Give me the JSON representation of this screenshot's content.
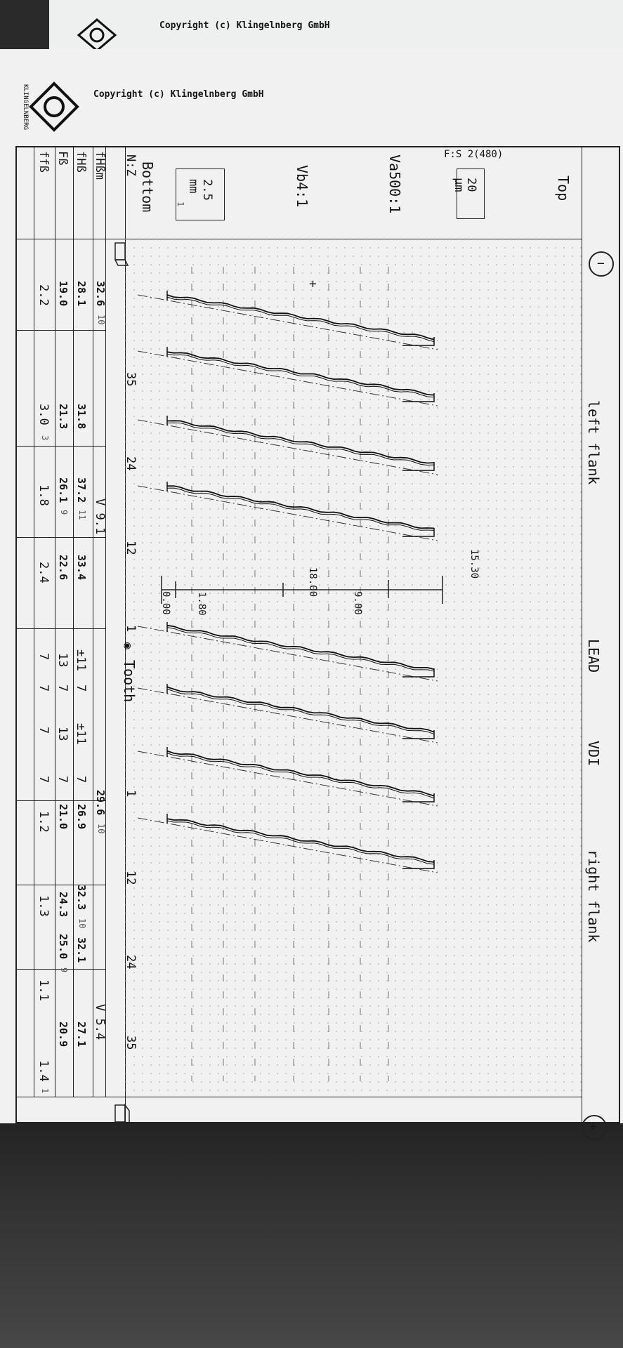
{
  "copyright": "Copyright (c) Klingelnberg GmbH",
  "logo_text": "KLINGELNBERG",
  "header": {
    "position_top": "Top",
    "left_flank": "left flank",
    "lead": "LEAD",
    "vdi": "VDI",
    "right_flank": "right flank",
    "minus": "−",
    "plus": "+"
  },
  "scale": {
    "fs": "F:S 2(480)",
    "vertical_value": "20",
    "vertical_unit": "µm",
    "va": "Va500:1",
    "vb": "Vb4:1",
    "horizontal_value": "2.5",
    "horizontal_unit": "mm",
    "horizontal_sub": "1",
    "bottom": "Bottom"
  },
  "table": {
    "row_labels": [
      "N:Z",
      "fHßm",
      "fHß",
      "Fß",
      "ffß"
    ],
    "tooth_label": "Tooth",
    "left_teeth": [
      "35",
      "24",
      "12",
      "1"
    ],
    "right_teeth": [
      "1",
      "12",
      "24",
      "35"
    ],
    "left_fhbm": "32.6",
    "left_fhbm_q": "10",
    "right_fhbm": "29.6",
    "right_fhbm_q": "10",
    "left_v": "V  9.1",
    "right_v": "V  5.4",
    "tol_fhb": [
      "±11",
      "7",
      "±11",
      "7"
    ],
    "tol_fb": [
      "13",
      "7",
      "13",
      "7"
    ],
    "tol_ffb": [
      "7",
      "7",
      "7",
      "7"
    ],
    "left_cols": [
      {
        "fhb": "28.1",
        "fb": "19.0",
        "ffb": "2.2"
      },
      {
        "fhb": "31.8",
        "fb": "21.3",
        "ffb": "3.0",
        "q": "3"
      },
      {
        "fhb": "37.2",
        "fhb_q": "11",
        "fb": "26.1",
        "fb_q": "9",
        "ffb": "1.8"
      },
      {
        "fhb": "33.4",
        "fb": "22.6",
        "ffb": "2.4"
      }
    ],
    "right_cols": [
      {
        "fhb": "26.9",
        "fb": "21.0",
        "ffb": "1.2"
      },
      {
        "fhb": "32.3",
        "fhb_q": "10",
        "fb": "24.3",
        "ffb": "1.3"
      },
      {
        "fhb": "32.1",
        "fb": "25.0",
        "fb_q": "9",
        "ffb": "1.1"
      },
      {
        "fhb": "27.1",
        "fb": "20.9",
        "ffb": "1.4",
        "q": "1"
      }
    ]
  },
  "axis": {
    "ticks": [
      "18.00",
      "15.30",
      "9.00",
      "1.80",
      "0.00"
    ]
  }
}
